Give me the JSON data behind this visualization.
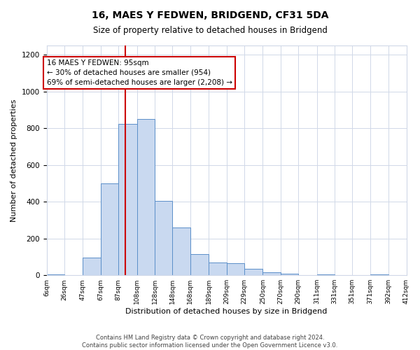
{
  "title": "16, MAES Y FEDWEN, BRIDGEND, CF31 5DA",
  "subtitle": "Size of property relative to detached houses in Bridgend",
  "xlabel": "Distribution of detached houses by size in Bridgend",
  "ylabel": "Number of detached properties",
  "bin_edges": [
    6,
    26,
    47,
    67,
    87,
    108,
    128,
    148,
    168,
    189,
    209,
    229,
    250,
    270,
    290,
    311,
    331,
    351,
    371,
    392,
    412
  ],
  "bin_labels": [
    "6sqm",
    "26sqm",
    "47sqm",
    "67sqm",
    "87sqm",
    "108sqm",
    "128sqm",
    "148sqm",
    "168sqm",
    "189sqm",
    "209sqm",
    "229sqm",
    "250sqm",
    "270sqm",
    "290sqm",
    "311sqm",
    "331sqm",
    "351sqm",
    "371sqm",
    "392sqm",
    "412sqm"
  ],
  "counts": [
    5,
    0,
    95,
    500,
    825,
    850,
    405,
    260,
    115,
    70,
    65,
    35,
    15,
    10,
    0,
    5,
    0,
    0,
    5,
    0
  ],
  "bar_color": "#c9d9f0",
  "bar_edge_color": "#5b8fc9",
  "property_line_x": 95,
  "property_line_color": "#cc0000",
  "annotation_line1": "16 MAES Y FEDWEN: 95sqm",
  "annotation_line2": "← 30% of detached houses are smaller (954)",
  "annotation_line3": "69% of semi-detached houses are larger (2,208) →",
  "annotation_box_color": "#ffffff",
  "annotation_box_edge_color": "#cc0000",
  "ylim": [
    0,
    1250
  ],
  "yticks": [
    0,
    200,
    400,
    600,
    800,
    1000,
    1200
  ],
  "footer_text": "Contains HM Land Registry data © Crown copyright and database right 2024.\nContains public sector information licensed under the Open Government Licence v3.0.",
  "background_color": "#ffffff",
  "grid_color": "#d0d8e8"
}
